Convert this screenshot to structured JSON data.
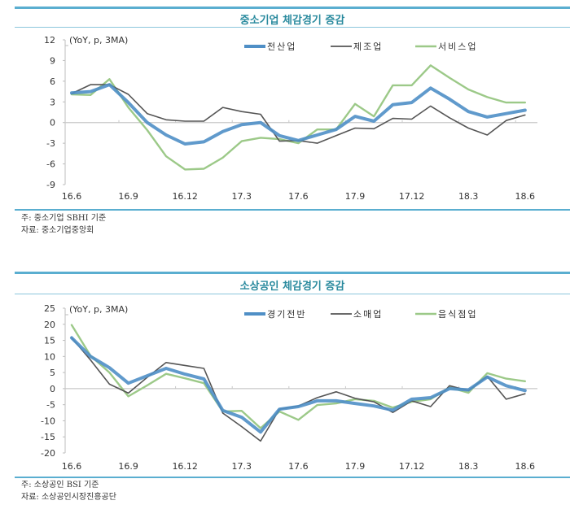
{
  "chart_data": [
    {
      "type": "line",
      "title": "중소기업 체감경기 증감",
      "unit_label": "(YoY, p, 3MA)",
      "xlabel": "",
      "ylabel": "",
      "ylim": [
        -9,
        12
      ],
      "yticks": [
        "12",
        "9",
        "6",
        "3",
        "0",
        "-3",
        "-6",
        "-9"
      ],
      "ytick_values": [
        12,
        9,
        6,
        3,
        0,
        -3,
        -6,
        -9
      ],
      "x": [
        "16.6",
        "16.7",
        "16.8",
        "16.9",
        "16.10",
        "16.11",
        "16.12",
        "17.1",
        "17.2",
        "17.3",
        "17.4",
        "17.5",
        "17.6",
        "17.7",
        "17.8",
        "17.9",
        "17.10",
        "17.11",
        "17.12",
        "18.1",
        "18.2",
        "18.3",
        "18.4",
        "18.5",
        "18.6"
      ],
      "xtick_labels": [
        "16.6",
        "16.9",
        "16.12",
        "17.3",
        "17.6",
        "17.9",
        "17.12",
        "18.3",
        "18.6"
      ],
      "xtick_index": [
        0,
        3,
        6,
        9,
        12,
        15,
        18,
        21,
        24
      ],
      "legend_position": "top-center",
      "grid": false,
      "series": [
        {
          "name": "전산업",
          "color": "#4f8fc6",
          "width": 4,
          "values": [
            4.3,
            4.5,
            5.5,
            2.9,
            0.0,
            -1.8,
            -3.1,
            -2.8,
            -1.3,
            -0.3,
            0.0,
            -1.9,
            -2.6,
            -1.8,
            -1.0,
            0.9,
            0.2,
            2.6,
            2.9,
            5.0,
            3.4,
            1.6,
            0.8,
            1.3,
            1.8
          ]
        },
        {
          "name": "제조업",
          "color": "#555555",
          "width": 1.6,
          "values": [
            4.2,
            5.5,
            5.5,
            4.1,
            1.3,
            0.4,
            0.2,
            0.2,
            2.2,
            1.6,
            1.2,
            -2.7,
            -2.6,
            -3.0,
            -1.9,
            -0.8,
            -0.9,
            0.6,
            0.5,
            2.4,
            0.7,
            -0.8,
            -1.8,
            0.3,
            1.1
          ]
        },
        {
          "name": "서비스업",
          "color": "#9cc988",
          "width": 2.4,
          "values": [
            4.1,
            4.0,
            6.3,
            2.2,
            -1.1,
            -4.9,
            -6.8,
            -6.7,
            -5.1,
            -2.7,
            -2.2,
            -2.4,
            -3.0,
            -1.0,
            -1.0,
            2.7,
            0.9,
            5.4,
            5.4,
            8.3,
            6.5,
            4.8,
            3.7,
            2.9,
            2.9
          ]
        }
      ],
      "notes": [
        "주: 중소기업 SBHI 기준",
        "자료: 중소기업중앙회"
      ]
    },
    {
      "type": "line",
      "title": "소상공인 체감경기 증감",
      "unit_label": "(YoY, p, 3MA)",
      "xlabel": "",
      "ylabel": "",
      "ylim": [
        -20,
        25
      ],
      "yticks": [
        "25",
        "20",
        "15",
        "10",
        "5",
        "0",
        "-5",
        "-10",
        "-15",
        "-20"
      ],
      "ytick_values": [
        25,
        20,
        15,
        10,
        5,
        0,
        -5,
        -10,
        -15,
        -20
      ],
      "x": [
        "16.6",
        "16.7",
        "16.8",
        "16.9",
        "16.10",
        "16.11",
        "16.12",
        "17.1",
        "17.2",
        "17.3",
        "17.4",
        "17.5",
        "17.6",
        "17.7",
        "17.8",
        "17.9",
        "17.10",
        "17.11",
        "17.12",
        "18.1",
        "18.2",
        "18.3",
        "18.4",
        "18.5",
        "18.6"
      ],
      "xtick_labels": [
        "16.6",
        "16.9",
        "16.12",
        "17.3",
        "17.6",
        "17.9",
        "17.12",
        "18.3",
        "18.6"
      ],
      "xtick_index": [
        0,
        3,
        6,
        9,
        12,
        15,
        18,
        21,
        24
      ],
      "legend_position": "top-center",
      "grid": false,
      "series": [
        {
          "name": "경기전반",
          "color": "#4f8fc6",
          "width": 4,
          "values": [
            15.8,
            10.0,
            6.5,
            1.7,
            4.0,
            6.3,
            4.5,
            3.0,
            -6.8,
            -8.9,
            -13.5,
            -6.4,
            -5.6,
            -3.8,
            -3.8,
            -4.6,
            -5.4,
            -6.7,
            -3.3,
            -2.8,
            0.0,
            -0.4,
            3.6,
            0.9,
            -0.6
          ]
        },
        {
          "name": "소매업",
          "color": "#555555",
          "width": 1.6,
          "values": [
            15.8,
            8.9,
            1.4,
            -1.4,
            3.5,
            8.1,
            7.2,
            6.3,
            -7.6,
            -11.8,
            -16.3,
            -6.4,
            -5.4,
            -2.8,
            -1.0,
            -3.0,
            -4.1,
            -7.4,
            -3.8,
            -5.6,
            0.9,
            -0.6,
            3.8,
            -3.3,
            -1.6
          ]
        },
        {
          "name": "음식점업",
          "color": "#9cc988",
          "width": 2.4,
          "values": [
            19.8,
            10.2,
            5.0,
            -2.4,
            1.0,
            4.6,
            3.2,
            1.7,
            -7.1,
            -6.9,
            -12.3,
            -7.1,
            -9.7,
            -5.1,
            -4.6,
            -3.3,
            -3.8,
            -5.9,
            -4.1,
            -3.3,
            0.4,
            -1.3,
            4.8,
            3.1,
            2.3
          ]
        }
      ],
      "notes": [
        "주: 소상공인 BSI 기준",
        "자료: 소상공인시장진흥공단"
      ]
    }
  ]
}
